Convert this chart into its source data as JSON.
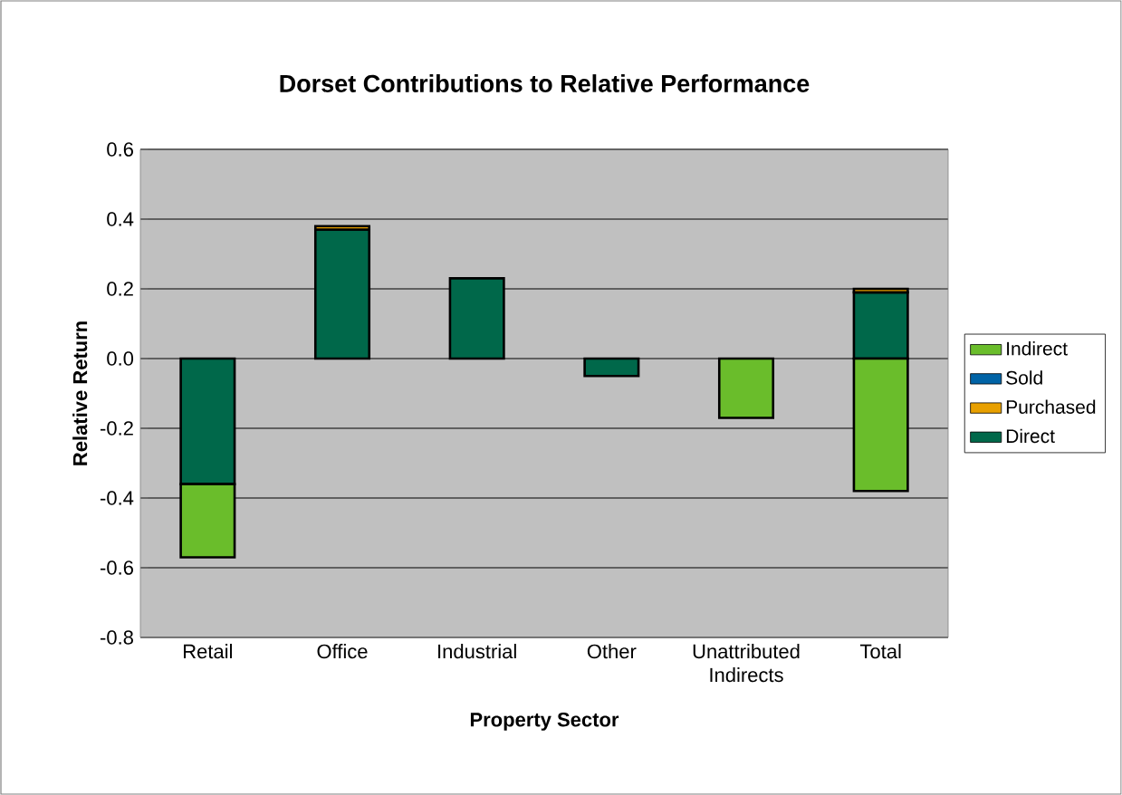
{
  "chart_data": {
    "type": "bar",
    "title": "Dorset Contributions to Relative Performance",
    "xlabel": "Property Sector",
    "ylabel": "Relative Return",
    "categories": [
      "Retail",
      "Office",
      "Industrial",
      "Other",
      "Unattributed Indirects",
      "Total"
    ],
    "series": [
      {
        "name": "Direct",
        "color": "#00684a",
        "values": [
          -0.36,
          0.37,
          0.23,
          -0.05,
          null,
          0.19
        ]
      },
      {
        "name": "Purchased",
        "color": "#e8a000",
        "values": [
          null,
          0.01,
          null,
          null,
          null,
          0.01
        ]
      },
      {
        "name": "Sold",
        "color": "#0063a6",
        "values": [
          null,
          null,
          null,
          null,
          null,
          null
        ]
      },
      {
        "name": "Indirect",
        "color": "#6abd2b",
        "values": [
          -0.21,
          null,
          null,
          null,
          -0.17,
          -0.38
        ]
      }
    ],
    "stacked": true,
    "ylim": [
      -0.8,
      0.6
    ],
    "yticks": [
      -0.8,
      -0.6,
      -0.4,
      -0.2,
      {
        "value": 0,
        "label": "0.0"
      },
      0.2,
      0.4,
      0.6
    ],
    "grid": "y",
    "legend": "right"
  }
}
